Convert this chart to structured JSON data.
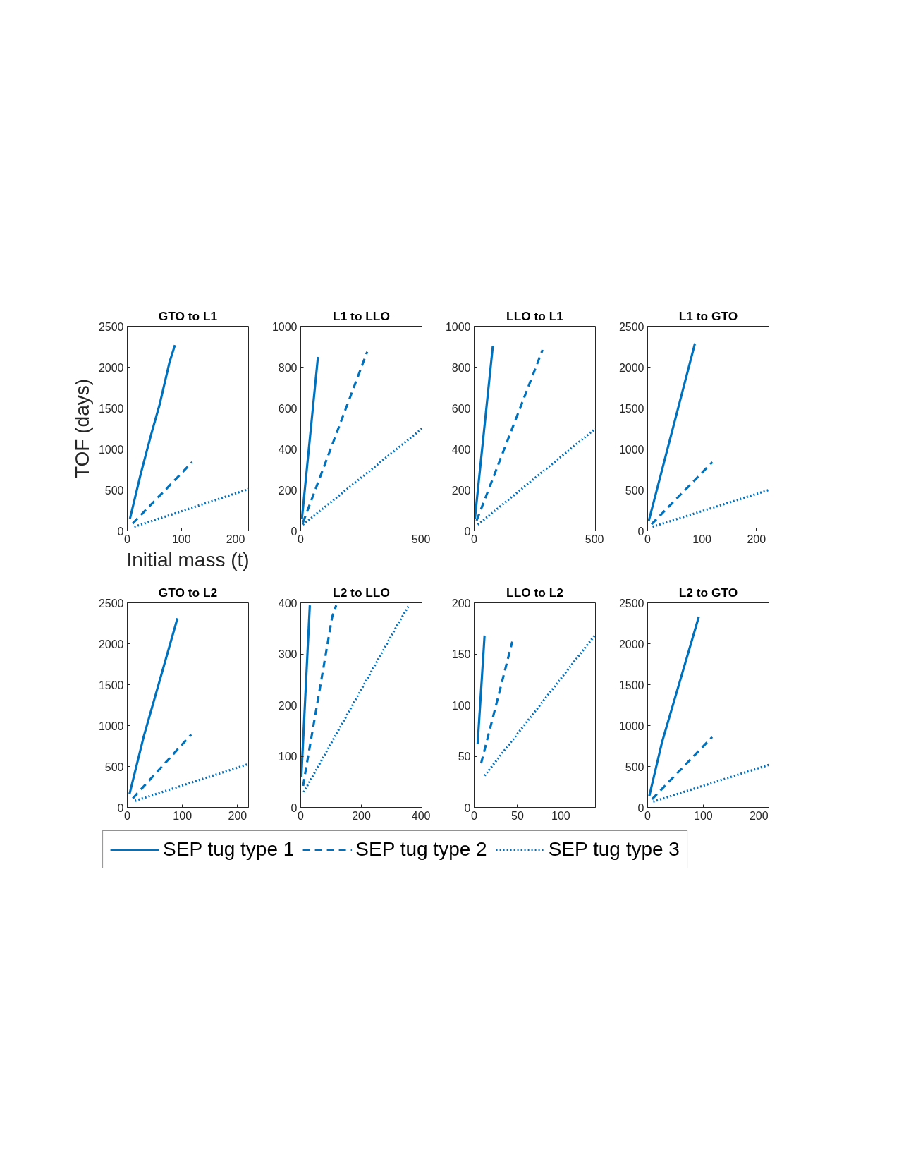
{
  "chart_data": [
    {
      "type": "line",
      "title": "GTO to L1",
      "xlabel": "Initial mass (t)",
      "ylabel": "TOF (days)",
      "xlim": [
        0,
        224
      ],
      "xticks": [
        0,
        100,
        200
      ],
      "ylim": [
        0,
        2500
      ],
      "yticks": [
        0,
        500,
        1000,
        1500,
        2000,
        2500
      ],
      "grid": false,
      "series": [
        {
          "color": "#0072bd",
          "line_style": "solid",
          "x": [
            5,
            25,
            45,
            60,
            78,
            88
          ],
          "values": [
            150,
            700,
            1200,
            1550,
            2060,
            2270
          ]
        },
        {
          "color": "#0072bd",
          "line_style": "dashed",
          "x": [
            10,
            120
          ],
          "values": [
            90,
            840
          ]
        },
        {
          "color": "#0072bd",
          "line_style": "dotted",
          "x": [
            13,
            224
          ],
          "values": [
            50,
            510
          ]
        }
      ]
    },
    {
      "type": "line",
      "title": "L1 to LLO",
      "xlim": [
        0,
        500
      ],
      "xticks": [
        0,
        500
      ],
      "ylim": [
        0,
        1000
      ],
      "yticks": [
        0,
        200,
        400,
        600,
        800,
        1000
      ],
      "grid": false,
      "series": [
        {
          "color": "#0072bd",
          "line_style": "solid",
          "x": [
            5,
            71
          ],
          "values": [
            60,
            850
          ]
        },
        {
          "color": "#0072bd",
          "line_style": "dashed",
          "x": [
            9,
            274
          ],
          "values": [
            40,
            875
          ]
        },
        {
          "color": "#0072bd",
          "line_style": "dotted",
          "x": [
            9,
            500
          ],
          "values": [
            30,
            500
          ]
        }
      ]
    },
    {
      "type": "line",
      "title": "LLO to L1",
      "xlim": [
        0,
        500
      ],
      "xticks": [
        0,
        500
      ],
      "ylim": [
        0,
        1000
      ],
      "yticks": [
        0,
        200,
        400,
        600,
        800,
        1000
      ],
      "grid": false,
      "series": [
        {
          "color": "#0072bd",
          "line_style": "solid",
          "x": [
            3,
            77
          ],
          "values": [
            60,
            905
          ]
        },
        {
          "color": "#0072bd",
          "line_style": "dashed",
          "x": [
            10,
            282
          ],
          "values": [
            50,
            885
          ]
        },
        {
          "color": "#0072bd",
          "line_style": "dotted",
          "x": [
            15,
            500
          ],
          "values": [
            30,
            500
          ]
        }
      ]
    },
    {
      "type": "line",
      "title": "L1 to GTO",
      "xlim": [
        0,
        223
      ],
      "xticks": [
        0,
        100,
        200
      ],
      "ylim": [
        0,
        2500
      ],
      "yticks": [
        0,
        500,
        1000,
        1500,
        2000,
        2500
      ],
      "grid": false,
      "series": [
        {
          "color": "#0072bd",
          "line_style": "solid",
          "x": [
            2,
            87
          ],
          "values": [
            120,
            2290
          ]
        },
        {
          "color": "#0072bd",
          "line_style": "dashed",
          "x": [
            7,
            119
          ],
          "values": [
            80,
            840
          ]
        },
        {
          "color": "#0072bd",
          "line_style": "dotted",
          "x": [
            9,
            223
          ],
          "values": [
            50,
            500
          ]
        }
      ]
    },
    {
      "type": "line",
      "title": "GTO to L2",
      "xlim": [
        0,
        220
      ],
      "xticks": [
        0,
        100,
        200
      ],
      "ylim": [
        0,
        2500
      ],
      "yticks": [
        0,
        500,
        1000,
        1500,
        2000,
        2500
      ],
      "grid": false,
      "series": [
        {
          "color": "#0072bd",
          "line_style": "solid",
          "x": [
            4,
            30,
            91
          ],
          "values": [
            160,
            870,
            2310
          ]
        },
        {
          "color": "#0072bd",
          "line_style": "dashed",
          "x": [
            10,
            116
          ],
          "values": [
            110,
            890
          ]
        },
        {
          "color": "#0072bd",
          "line_style": "dotted",
          "x": [
            14,
            220
          ],
          "values": [
            80,
            530
          ]
        }
      ]
    },
    {
      "type": "line",
      "title": "L2 to LLO",
      "xlim": [
        0,
        400
      ],
      "xticks": [
        0,
        200,
        400
      ],
      "ylim": [
        0,
        400
      ],
      "yticks": [
        0,
        100,
        200,
        300,
        400
      ],
      "grid": false,
      "series": [
        {
          "color": "#0072bd",
          "line_style": "solid",
          "x": [
            2,
            30
          ],
          "values": [
            59,
            395
          ]
        },
        {
          "color": "#0072bd",
          "line_style": "dashed",
          "x": [
            8,
            14,
            104,
            117
          ],
          "values": [
            42,
            64,
            373,
            395
          ]
        },
        {
          "color": "#0072bd",
          "line_style": "dotted",
          "x": [
            10,
            326,
            355
          ],
          "values": [
            30,
            364,
            393
          ]
        }
      ]
    },
    {
      "type": "line",
      "title": "LLO to L2",
      "xlim": [
        0,
        140
      ],
      "xticks": [
        0,
        50,
        100
      ],
      "ylim": [
        0,
        200
      ],
      "yticks": [
        0,
        50,
        100,
        150,
        200
      ],
      "grid": false,
      "series": [
        {
          "color": "#0072bd",
          "line_style": "solid",
          "x": [
            4,
            12
          ],
          "values": [
            62,
            168
          ]
        },
        {
          "color": "#0072bd",
          "line_style": "dashed",
          "x": [
            8,
            44
          ],
          "values": [
            43,
            162
          ]
        },
        {
          "color": "#0072bd",
          "line_style": "dotted",
          "x": [
            12,
            140
          ],
          "values": [
            31,
            169
          ]
        }
      ]
    },
    {
      "type": "line",
      "title": "L2 to GTO",
      "xlim": [
        0,
        218
      ],
      "xticks": [
        0,
        100,
        200
      ],
      "ylim": [
        0,
        2500
      ],
      "yticks": [
        0,
        500,
        1000,
        1500,
        2000,
        2500
      ],
      "grid": false,
      "legend": "bottom",
      "series": [
        {
          "name": "SEP tug type 1",
          "color": "#0072bd",
          "line_style": "solid",
          "x": [
            3,
            26,
            92
          ],
          "values": [
            140,
            800,
            2330
          ]
        },
        {
          "name": "SEP tug type 2",
          "color": "#0072bd",
          "line_style": "dashed",
          "x": [
            8,
            116
          ],
          "values": [
            100,
            860
          ]
        },
        {
          "name": "SEP tug type 3",
          "color": "#0072bd",
          "line_style": "dotted",
          "x": [
            10,
            218
          ],
          "values": [
            70,
            520
          ]
        }
      ]
    }
  ]
}
